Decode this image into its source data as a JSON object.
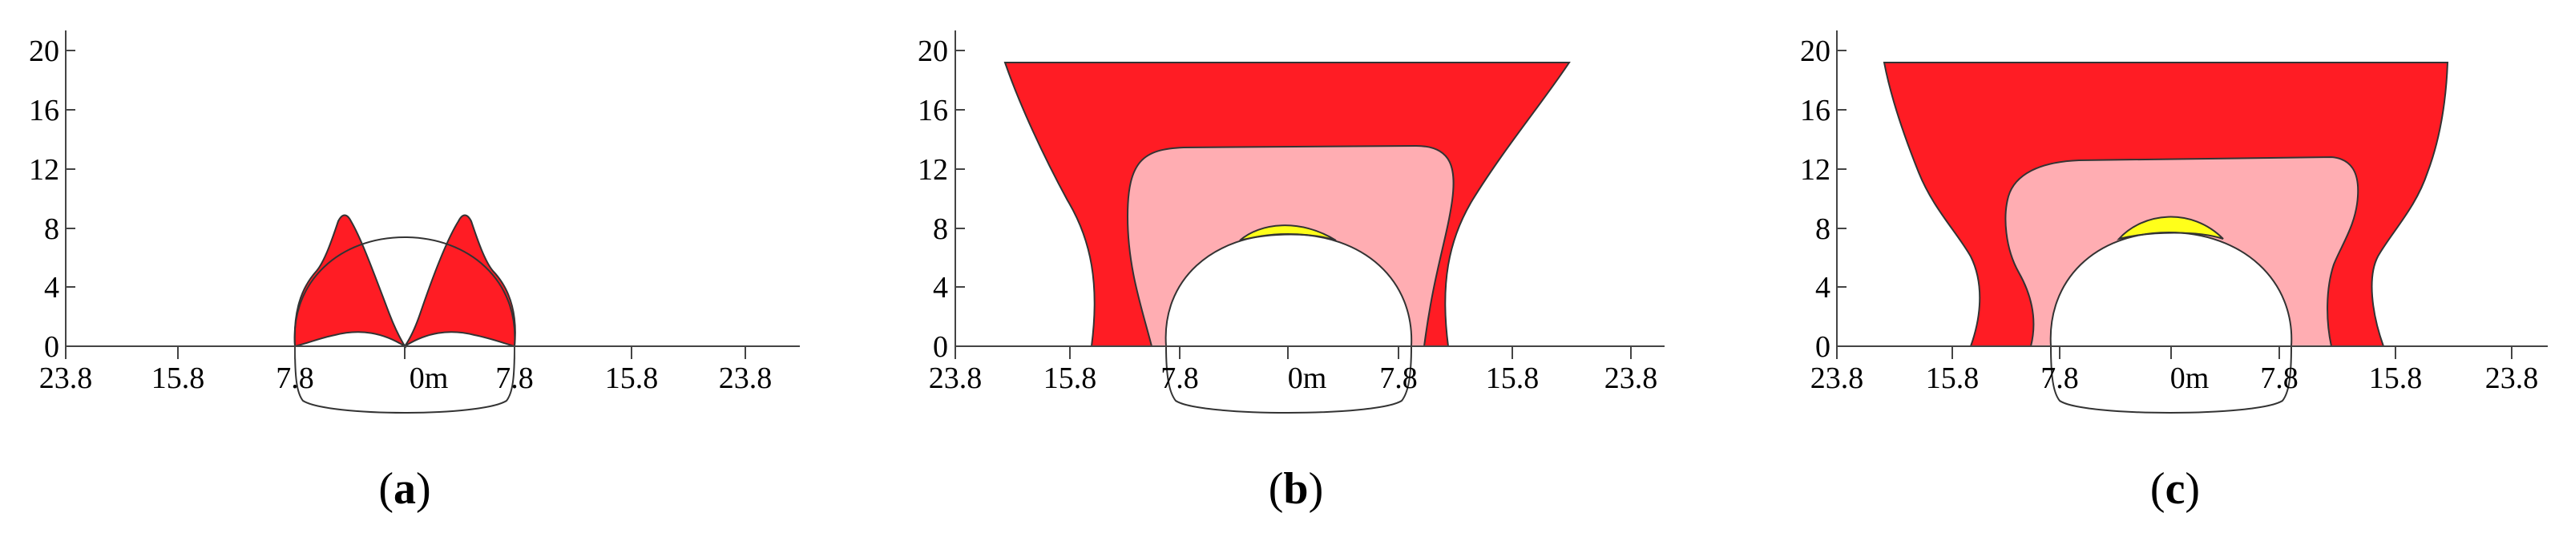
{
  "panels": [
    {
      "id": "a",
      "caption": {
        "open": "(",
        "letter": "a",
        "close": ")"
      },
      "x_tick_labels": [
        "23.8",
        "15.8",
        "7.8",
        "0m",
        "7.8",
        "15.8",
        "23.8"
      ],
      "y_tick_labels": [
        "0",
        "4",
        "8",
        "12",
        "16",
        "20"
      ]
    },
    {
      "id": "b",
      "caption": {
        "open": "(",
        "letter": "b",
        "close": ")"
      },
      "x_tick_labels": [
        "23.8",
        "15.8",
        "7.8",
        "0m",
        "7.8",
        "15.8",
        "23.8"
      ],
      "y_tick_labels": [
        "0",
        "4",
        "8",
        "12",
        "16",
        "20"
      ]
    },
    {
      "id": "c",
      "caption": {
        "open": "(",
        "letter": "c",
        "close": ")"
      },
      "x_tick_labels": [
        "23.8",
        "15.8",
        "7.8",
        "0m",
        "7.8",
        "15.8",
        "23.8"
      ],
      "y_tick_labels": [
        "0",
        "4",
        "8",
        "12",
        "16",
        "20"
      ]
    }
  ],
  "colors": {
    "red_zone": "#ff1c24",
    "pink_zone": "#ffadb2",
    "yellow_zone": "#ffff1a",
    "outline": "#333333",
    "axis": "#444444"
  }
}
